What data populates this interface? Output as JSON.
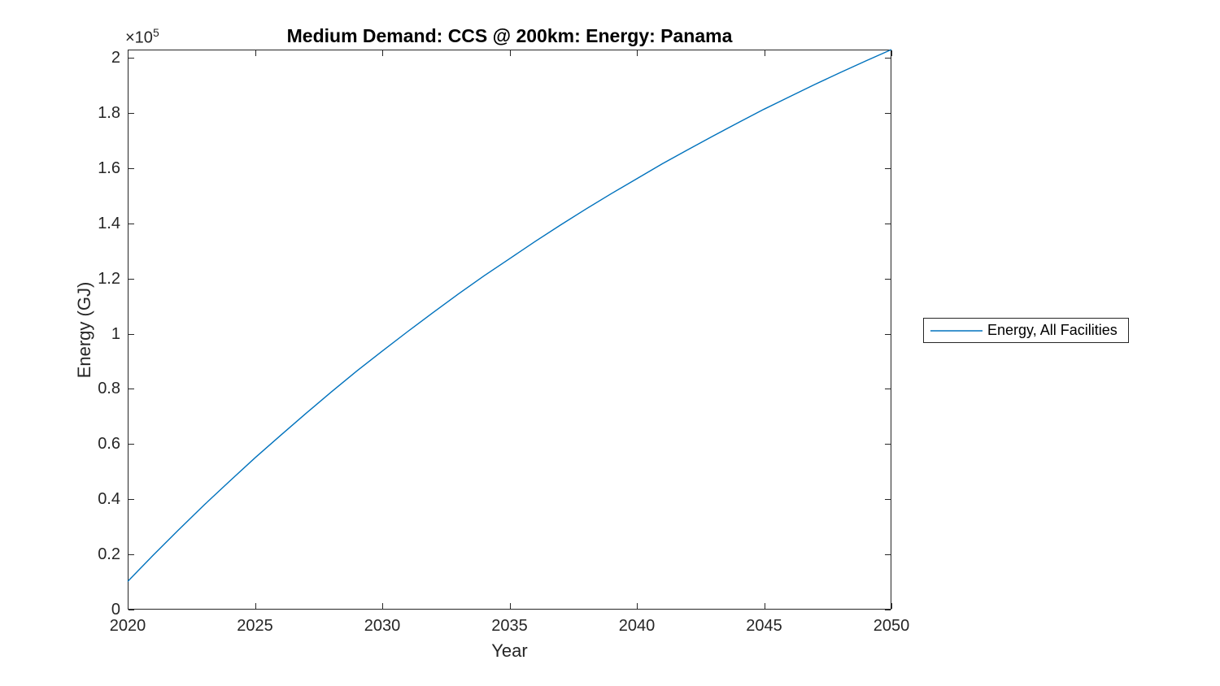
{
  "figure": {
    "background": "#ffffff",
    "axes_color": "#262626",
    "tick_label_color": "#262626"
  },
  "chart_data": {
    "type": "line",
    "title": "Medium Demand: CCS @ 200km: Energy: Panama",
    "xlabel": "Year",
    "ylabel": "Energy (GJ)",
    "y_exponent_base": "×10",
    "y_exponent_power": "5",
    "grid": false,
    "legend": {
      "position": "right-outside",
      "entries": [
        "Energy, All Facilities"
      ]
    },
    "xlim": [
      2020,
      2050
    ],
    "ylim": [
      0,
      203000
    ],
    "x_ticks": [
      2020,
      2025,
      2030,
      2035,
      2040,
      2045,
      2050
    ],
    "x_tick_labels": [
      "2020",
      "2025",
      "2030",
      "2035",
      "2040",
      "2045",
      "2050"
    ],
    "y_ticks": [
      0,
      20000,
      40000,
      60000,
      80000,
      100000,
      120000,
      140000,
      160000,
      180000,
      200000
    ],
    "y_tick_labels": [
      "0",
      "0.2",
      "0.4",
      "0.6",
      "0.8",
      "1",
      "1.2",
      "1.4",
      "1.6",
      "1.8",
      "2"
    ],
    "x": [
      2020,
      2021,
      2022,
      2023,
      2024,
      2025,
      2026,
      2027,
      2028,
      2029,
      2030,
      2031,
      2032,
      2033,
      2034,
      2035,
      2036,
      2037,
      2038,
      2039,
      2040,
      2041,
      2042,
      2043,
      2044,
      2045,
      2046,
      2047,
      2048,
      2049,
      2050
    ],
    "series": [
      {
        "name": "Energy, All Facilities",
        "color": "#0072BD",
        "values": [
          10200,
          19700,
          28900,
          37900,
          46500,
          55000,
          63100,
          71100,
          78900,
          86500,
          93700,
          100800,
          107700,
          114500,
          121000,
          127200,
          133400,
          139400,
          145200,
          150800,
          156200,
          161600,
          166700,
          171700,
          176600,
          181400,
          185900,
          190400,
          194700,
          198900,
          203000
        ]
      }
    ]
  }
}
